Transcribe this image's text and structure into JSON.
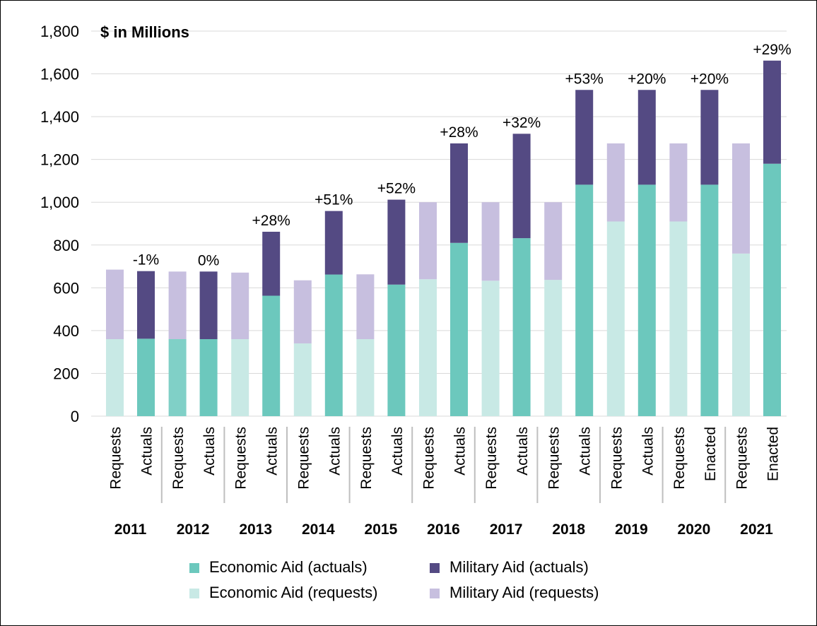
{
  "chart_data": {
    "type": "bar",
    "stacked": true,
    "unit_label": "$ in Millions",
    "ylim": [
      0,
      1800
    ],
    "y_ticks": [
      "0",
      "200",
      "400",
      "600",
      "800",
      "1,000",
      "1,200",
      "1,400",
      "1,600",
      "1,800"
    ],
    "grid": "horizontal",
    "legend_position": "bottom",
    "groups": [
      {
        "year": "2011",
        "bars": [
          {
            "label": "Requests",
            "kind": "requests",
            "economic": 360,
            "military": 325
          },
          {
            "label": "Actuals",
            "kind": "actuals",
            "economic": 362,
            "military": 316,
            "change": "-1%"
          }
        ]
      },
      {
        "year": "2012",
        "bars": [
          {
            "label": "Requests",
            "kind": "requests",
            "economic": 360,
            "military": 316
          },
          {
            "label": "Actuals",
            "kind": "actuals",
            "economic": 360,
            "military": 316,
            "change": "0%"
          }
        ]
      },
      {
        "year": "2013",
        "bars": [
          {
            "label": "Requests",
            "kind": "requests",
            "economic": 360,
            "military": 311
          },
          {
            "label": "Actuals",
            "kind": "actuals",
            "economic": 563,
            "military": 299,
            "change": "+28%"
          }
        ]
      },
      {
        "year": "2014",
        "bars": [
          {
            "label": "Requests",
            "kind": "requests",
            "economic": 340,
            "military": 295
          },
          {
            "label": "Actuals",
            "kind": "actuals",
            "economic": 662,
            "military": 297,
            "change": "+51%"
          }
        ]
      },
      {
        "year": "2015",
        "bars": [
          {
            "label": "Requests",
            "kind": "requests",
            "economic": 360,
            "military": 303
          },
          {
            "label": "Actuals",
            "kind": "actuals",
            "economic": 615,
            "military": 397,
            "change": "+52%"
          }
        ]
      },
      {
        "year": "2016",
        "bars": [
          {
            "label": "Requests",
            "kind": "requests",
            "economic": 640,
            "military": 360
          },
          {
            "label": "Actuals",
            "kind": "actuals",
            "economic": 810,
            "military": 465,
            "change": "+28%"
          }
        ]
      },
      {
        "year": "2017",
        "bars": [
          {
            "label": "Requests",
            "kind": "requests",
            "economic": 633,
            "military": 367
          },
          {
            "label": "Actuals",
            "kind": "actuals",
            "economic": 832,
            "military": 488,
            "change": "+32%"
          }
        ]
      },
      {
        "year": "2018",
        "bars": [
          {
            "label": "Requests",
            "kind": "requests",
            "economic": 637,
            "military": 363
          },
          {
            "label": "Actuals",
            "kind": "actuals",
            "economic": 1082,
            "military": 443,
            "change": "+53%"
          }
        ]
      },
      {
        "year": "2019",
        "bars": [
          {
            "label": "Requests",
            "kind": "requests",
            "economic": 910,
            "military": 365
          },
          {
            "label": "Actuals",
            "kind": "actuals",
            "economic": 1082,
            "military": 443,
            "change": "+20%"
          }
        ]
      },
      {
        "year": "2020",
        "bars": [
          {
            "label": "Requests",
            "kind": "requests",
            "economic": 910,
            "military": 365
          },
          {
            "label": "Enacted",
            "kind": "actuals",
            "economic": 1082,
            "military": 443,
            "change": "+20%"
          }
        ]
      },
      {
        "year": "2021",
        "bars": [
          {
            "label": "Requests",
            "kind": "requests",
            "economic": 760,
            "military": 515
          },
          {
            "label": "Enacted",
            "kind": "actuals",
            "economic": 1180,
            "military": 482,
            "change": "+29%"
          }
        ]
      }
    ],
    "legend": [
      {
        "key": "econ_actual",
        "label": "Economic Aid (actuals)"
      },
      {
        "key": "mil_actual",
        "label": "Military Aid (actuals)"
      },
      {
        "key": "econ_request",
        "label": "Economic Aid (requests)"
      },
      {
        "key": "mil_request",
        "label": "Military Aid (requests)"
      }
    ],
    "colors": {
      "econ_actual": "#6cc8bd",
      "mil_actual": "#544a83",
      "econ_request": "#c8e9e5",
      "mil_request": "#c7bfdf",
      "econ_actual_2012_request": "#80d0c7",
      "grid": "#d9d9d9",
      "separator": "#bfbfbf"
    }
  }
}
